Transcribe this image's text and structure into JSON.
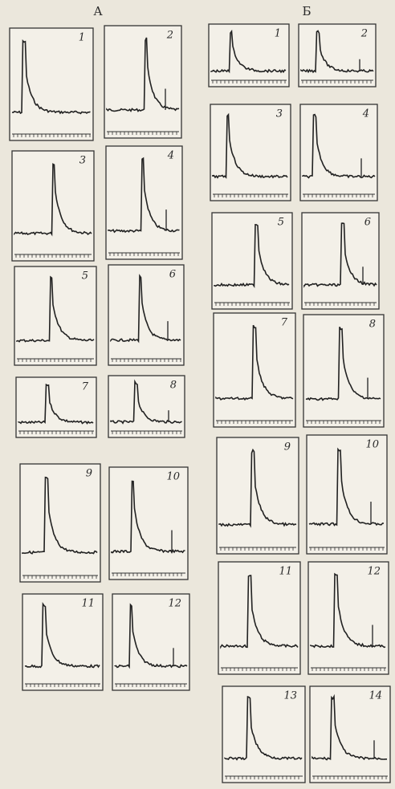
{
  "columns": [
    {
      "label": "А",
      "panels": [
        "1",
        "2",
        "3",
        "4",
        "5",
        "6",
        "7",
        "8",
        "9",
        "10",
        "11",
        "12"
      ]
    },
    {
      "label": "Б",
      "panels": [
        "1",
        "2",
        "3",
        "4",
        "5",
        "6",
        "7",
        "8",
        "9",
        "10",
        "11",
        "12",
        "13",
        "14"
      ]
    }
  ]
}
